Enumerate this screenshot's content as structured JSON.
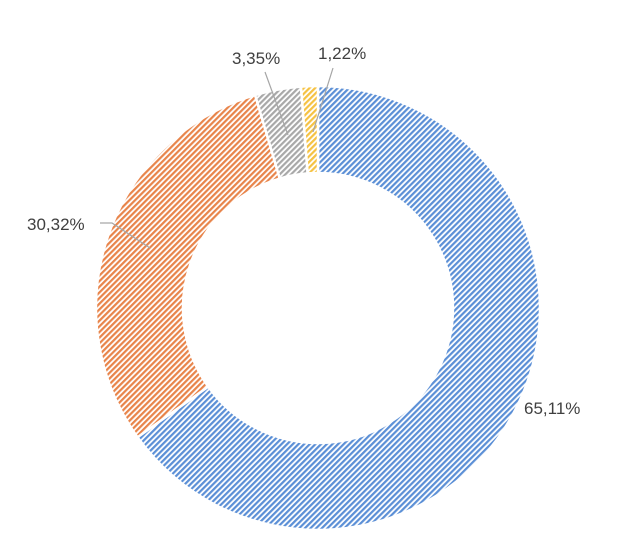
{
  "chart_data": {
    "type": "pie",
    "variant": "donut",
    "values": [
      65.11,
      30.32,
      3.35,
      1.22
    ],
    "labels": [
      "65,11%",
      "30,32%",
      "3,35%",
      "1,22%"
    ],
    "colors": [
      "#5b8fd6",
      "#e8844a",
      "#a8a8a8",
      "#f5c242"
    ],
    "pattern": "fine diagonal hatch",
    "legend": "none",
    "title": ""
  }
}
